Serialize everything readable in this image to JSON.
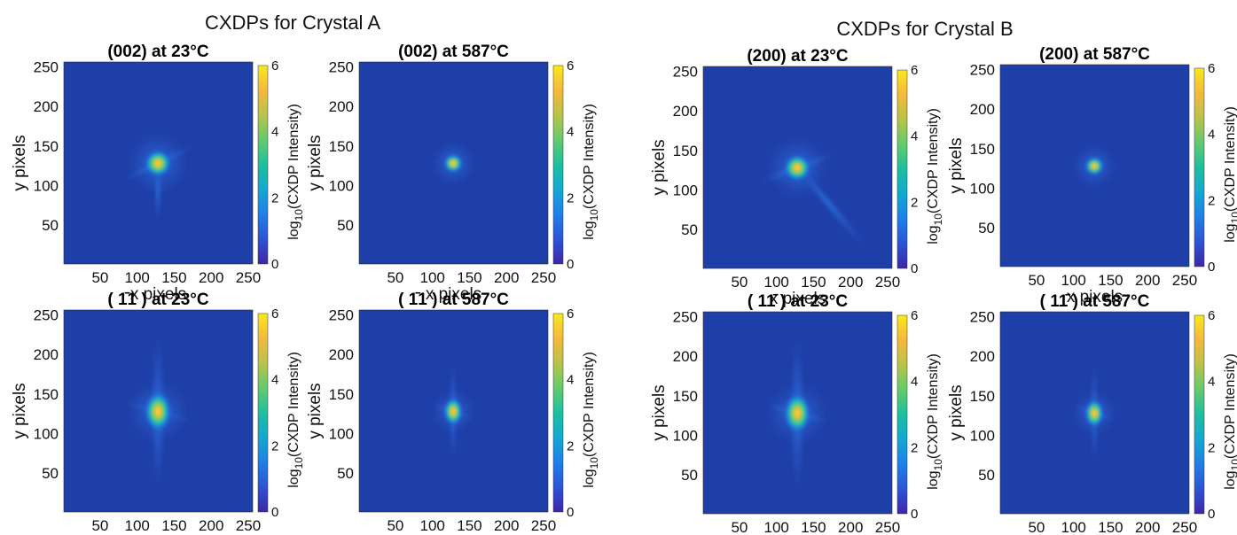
{
  "figure": {
    "group_titles": [
      "CXDPs for Crystal A",
      "CXDPs for Crystal B"
    ]
  },
  "colors": {
    "background": "#1f3fa8",
    "colormap": [
      "#3e26a8",
      "#2c54d6",
      "#1f7fe8",
      "#13a8d2",
      "#1cbfa0",
      "#62cb6c",
      "#b8c34a",
      "#f5b93c",
      "#f9e81e"
    ]
  },
  "chart_data": [
    {
      "type": "heatmap",
      "group": "CXDPs for Crystal A",
      "title": "(002) at 23°C",
      "reflection": "002",
      "temperature": "23°C",
      "xlabel": "x pixels",
      "ylabel": "y pixels",
      "xlim": [
        1,
        256
      ],
      "ylim": [
        1,
        256
      ],
      "xticks": [
        50,
        100,
        150,
        200,
        250
      ],
      "yticks": [
        50,
        100,
        150,
        200,
        250
      ],
      "colorbar": {
        "label": "log10(CXDP Intensity)",
        "range": [
          0,
          6
        ],
        "ticks": [
          0,
          2,
          4,
          6
        ]
      },
      "peak_center": [
        128,
        128
      ],
      "peak_log10_intensity": 6
    },
    {
      "type": "heatmap",
      "group": "CXDPs for Crystal A",
      "title": "(002) at 587°C",
      "reflection": "002",
      "temperature": "587°C",
      "xlabel": "x pixels",
      "ylabel": "y pixels",
      "xlim": [
        1,
        256
      ],
      "ylim": [
        1,
        256
      ],
      "xticks": [
        50,
        100,
        150,
        200,
        250
      ],
      "yticks": [
        50,
        100,
        150,
        200,
        250
      ],
      "colorbar": {
        "label": "log10(CXDP Intensity)",
        "range": [
          0,
          6
        ],
        "ticks": [
          0,
          2,
          4,
          6
        ]
      },
      "peak_center": [
        128,
        128
      ],
      "peak_log10_intensity": 6
    },
    {
      "type": "heatmap",
      "group": "CXDPs for Crystal A",
      "title": "( 1̄1 ) at 23°C",
      "reflection": "1-11",
      "temperature": "23°C",
      "xlabel": "x pixels",
      "ylabel": "y pixels",
      "xlim": [
        1,
        256
      ],
      "ylim": [
        1,
        256
      ],
      "xticks": [
        50,
        100,
        150,
        200,
        250
      ],
      "yticks": [
        50,
        100,
        150,
        200,
        250
      ],
      "colorbar": {
        "label": "log10(CXDP Intensity)",
        "range": [
          0,
          6
        ],
        "ticks": [
          0,
          2,
          4,
          6
        ]
      },
      "peak_center": [
        128,
        128
      ],
      "peak_log10_intensity": 6
    },
    {
      "type": "heatmap",
      "group": "CXDPs for Crystal A",
      "title": "( 1̄1 ) at 587°C",
      "reflection": "1-11",
      "temperature": "587°C",
      "xlabel": "x pixels",
      "ylabel": "y pixels",
      "xlim": [
        1,
        256
      ],
      "ylim": [
        1,
        256
      ],
      "xticks": [
        50,
        100,
        150,
        200,
        250
      ],
      "yticks": [
        50,
        100,
        150,
        200,
        250
      ],
      "colorbar": {
        "label": "log10(CXDP Intensity)",
        "range": [
          0,
          6
        ],
        "ticks": [
          0,
          2,
          4,
          6
        ]
      },
      "peak_center": [
        128,
        128
      ],
      "peak_log10_intensity": 6
    },
    {
      "type": "heatmap",
      "group": "CXDPs for Crystal B",
      "title": "(200) at 23°C",
      "reflection": "200",
      "temperature": "23°C",
      "xlabel": "x pixels",
      "ylabel": "y pixels",
      "xlim": [
        1,
        256
      ],
      "ylim": [
        1,
        256
      ],
      "xticks": [
        50,
        100,
        150,
        200,
        250
      ],
      "yticks": [
        50,
        100,
        150,
        200,
        250
      ],
      "colorbar": {
        "label": "log10(CXDP Intensity)",
        "range": [
          0,
          6
        ],
        "ticks": [
          0,
          2,
          4,
          6
        ]
      },
      "peak_center": [
        128,
        128
      ],
      "peak_log10_intensity": 6
    },
    {
      "type": "heatmap",
      "group": "CXDPs for Crystal B",
      "title": "(200) at 587°C",
      "reflection": "200",
      "temperature": "587°C",
      "xlabel": "x pixels",
      "ylabel": "y pixels",
      "xlim": [
        1,
        256
      ],
      "ylim": [
        1,
        256
      ],
      "xticks": [
        50,
        100,
        150,
        200,
        250
      ],
      "yticks": [
        50,
        100,
        150,
        200,
        250
      ],
      "colorbar": {
        "label": "log10(CXDP Intensity)",
        "range": [
          0,
          6
        ],
        "ticks": [
          0,
          2,
          4,
          6
        ]
      },
      "peak_center": [
        128,
        128
      ],
      "peak_log10_intensity": 6
    },
    {
      "type": "heatmap",
      "group": "CXDPs for Crystal B",
      "title": "( 11̄ ) at 23°C",
      "reflection": "11-1",
      "temperature": "23°C",
      "xlabel": "x pixels",
      "ylabel": "y pixels",
      "xlim": [
        1,
        256
      ],
      "ylim": [
        1,
        256
      ],
      "xticks": [
        50,
        100,
        150,
        200,
        250
      ],
      "yticks": [
        50,
        100,
        150,
        200,
        250
      ],
      "colorbar": {
        "label": "log10(CXDP Intensity)",
        "range": [
          0,
          6
        ],
        "ticks": [
          0,
          2,
          4,
          6
        ]
      },
      "peak_center": [
        128,
        128
      ],
      "peak_log10_intensity": 6
    },
    {
      "type": "heatmap",
      "group": "CXDPs for Crystal B",
      "title": "( 11̄ ) at 587°C",
      "reflection": "11-1",
      "temperature": "587°C",
      "xlabel": "x pixels",
      "ylabel": "y pixels",
      "xlim": [
        1,
        256
      ],
      "ylim": [
        1,
        256
      ],
      "xticks": [
        50,
        100,
        150,
        200,
        250
      ],
      "yticks": [
        50,
        100,
        150,
        200,
        250
      ],
      "colorbar": {
        "label": "log10(CXDP Intensity)",
        "range": [
          0,
          6
        ],
        "ticks": [
          0,
          2,
          4,
          6
        ]
      },
      "peak_center": [
        128,
        128
      ],
      "peak_log10_intensity": 6
    }
  ]
}
